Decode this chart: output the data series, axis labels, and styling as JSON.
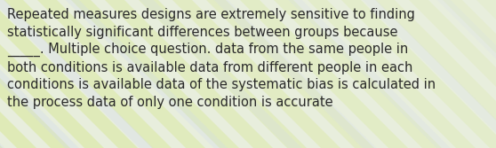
{
  "text": "Repeated measures designs are extremely sensitive to finding\nstatistically significant differences between groups because\n_____. Multiple choice question. data from the same people in\nboth conditions is available data from different people in each\nconditions is available data of the systematic bias is calculated in\nthe process data of only one condition is accurate",
  "font_size": 10.5,
  "font_color": "#2a2a2a",
  "fig_width": 5.58,
  "fig_height": 1.67,
  "dpi": 100,
  "bg_base": "#e8eedd",
  "stripe_yellow": "#d8e898",
  "stripe_light": "#f0f0e0",
  "stripe_blue": "#d0d8f0",
  "font_family": "DejaVu Sans"
}
